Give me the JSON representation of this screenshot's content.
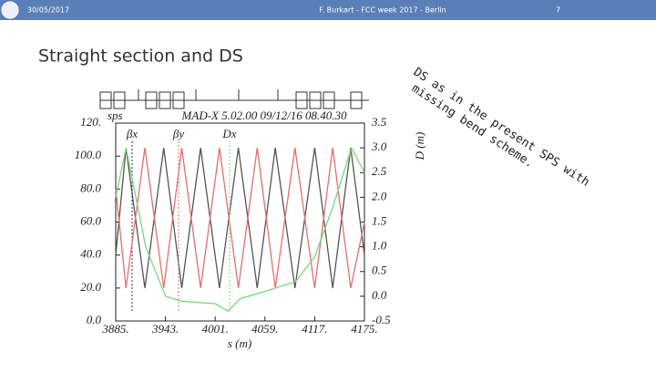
{
  "header": {
    "date": "30/05/2017",
    "footer": "F. Burkart - FCC week 2017 - Berlin",
    "page": "7"
  },
  "title": "Straight section and DS",
  "note": {
    "lines": [
      "DS as in the present SPS with",
      "missing bend scheme."
    ]
  },
  "chart_data": {
    "type": "line",
    "annotation": "sps",
    "subtitle": "MAD-X 5.02.00  09/12/16 08.40.30",
    "x_label": "s (m)",
    "y2_label": "D (m)",
    "xlim": [
      3885,
      4175
    ],
    "xticks": [
      {
        "value": 3885,
        "label": "3885."
      },
      {
        "value": 3943,
        "label": "3943."
      },
      {
        "value": 4001,
        "label": "4001."
      },
      {
        "value": 4059,
        "label": "4059."
      },
      {
        "value": 4117,
        "label": "4117."
      },
      {
        "value": 4175,
        "label": "4175."
      }
    ],
    "ylim": [
      0,
      120
    ],
    "yticks": [
      {
        "value": 0,
        "label": "0.0"
      },
      {
        "value": 20,
        "label": "20.0"
      },
      {
        "value": 40,
        "label": "40.0"
      },
      {
        "value": 60,
        "label": "60.0"
      },
      {
        "value": 80,
        "label": "80.0"
      },
      {
        "value": 100,
        "label": "100.0"
      },
      {
        "value": 120,
        "label": "120."
      }
    ],
    "y2lim": [
      -0.5,
      3.5
    ],
    "y2ticks": [
      -0.5,
      {
        "value": 0,
        "label": "0.0"
      },
      0.5,
      {
        "value": 1,
        "label": "1.0"
      },
      1.5,
      {
        "value": 2,
        "label": "2.0"
      },
      2.5,
      {
        "value": 3,
        "label": "3.0"
      },
      3.5
    ],
    "series": [
      {
        "name": "βx",
        "color": "#555555",
        "x": [
          3885,
          3897,
          3919,
          3941,
          3962,
          3984,
          4006,
          4028,
          4050,
          4071,
          4094,
          4117,
          4138,
          4159,
          4175
        ],
        "values": [
          40,
          105,
          20,
          105,
          20,
          105,
          20,
          105,
          20,
          105,
          20,
          105,
          20,
          105,
          40
        ]
      },
      {
        "name": "βy",
        "color": "#e07070",
        "x": [
          3885,
          3897,
          3919,
          3941,
          3962,
          3984,
          4006,
          4028,
          4050,
          4071,
          4094,
          4117,
          4138,
          4159,
          4175
        ],
        "values": [
          80,
          20,
          105,
          20,
          105,
          20,
          105,
          20,
          105,
          20,
          105,
          20,
          105,
          20,
          60
        ]
      },
      {
        "name": "Dx",
        "color": "#77d877",
        "axis": "y2",
        "x": [
          3885,
          3897,
          3920,
          3943,
          3962,
          4001,
          4016,
          4030,
          4059,
          4095,
          4117,
          4138,
          4160,
          4175
        ],
        "values": [
          2.0,
          3.0,
          1.0,
          0.0,
          -0.1,
          -0.15,
          -0.3,
          -0.05,
          0.1,
          0.3,
          0.8,
          1.8,
          3.0,
          2.5
        ]
      }
    ]
  }
}
